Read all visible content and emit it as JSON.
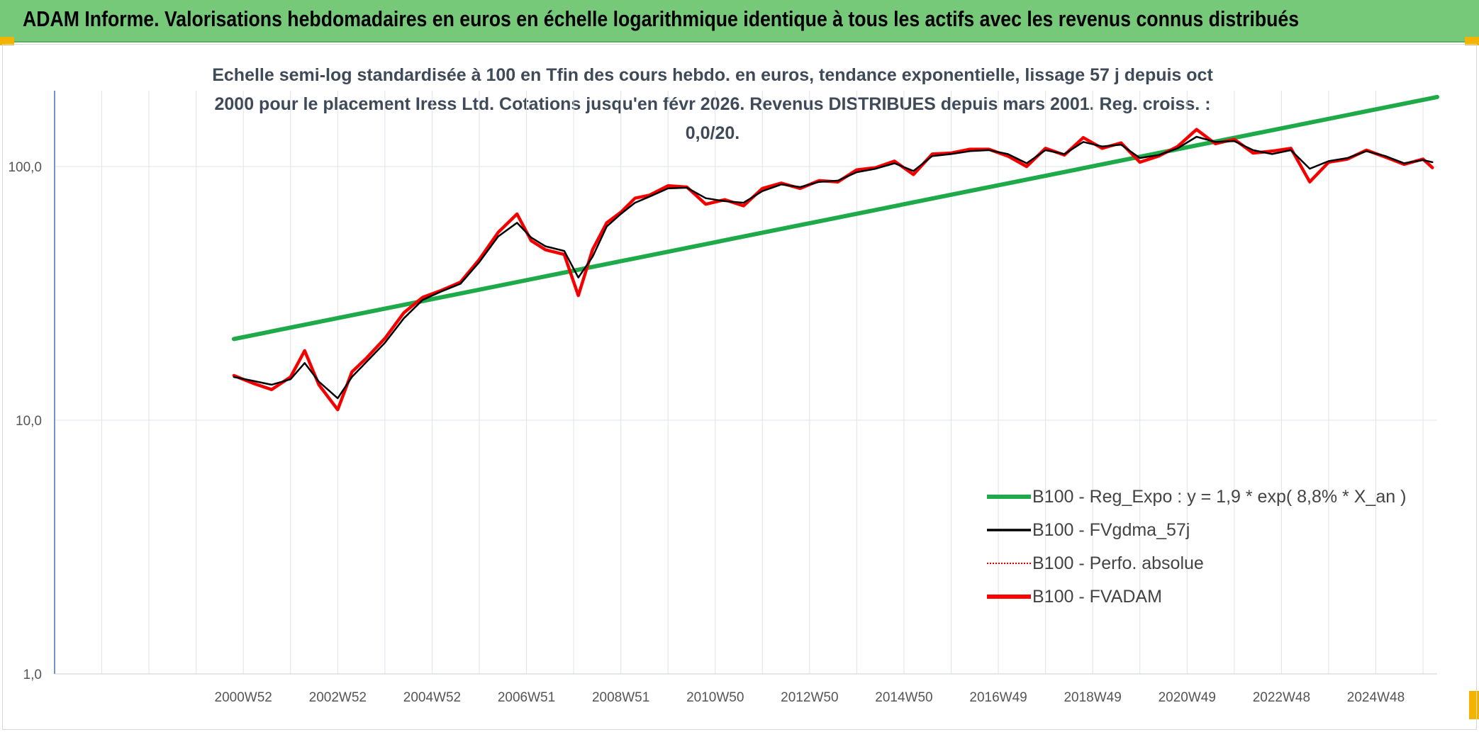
{
  "header": {
    "title": "ADAM Informe. Valorisations hebdomadaires en euros en échelle logarithmique identique à tous les actifs avec les revenus connus distribués"
  },
  "colors": {
    "header_bg": "#77c97a",
    "corner_accent": "#f2b400",
    "reg_line": "#1faa4a",
    "gdma_line": "#000000",
    "perfo_line": "#e00000",
    "fvadam_line": "#ff0000"
  },
  "chart_data": {
    "type": "line",
    "title": "Echelle semi-log standardisée à 100 en Tfin des cours hebdo. en euros, tendance exponentielle, lissage 57 j depuis oct 2000 pour le placement Iress Ltd. Cotations jusqu'en févr 2026. Revenus DISTRIBUES depuis mars 2001. Reg. croiss. : 0,0/20.",
    "y_scale": "log",
    "ylim": [
      1,
      200
    ],
    "xlim": [
      1997.0,
      2026.3
    ],
    "grid": true,
    "legend_position": "bottom-right",
    "x_ticks": [
      {
        "label": "2000W52",
        "x": 2001.0
      },
      {
        "label": "2002W52",
        "x": 2003.0
      },
      {
        "label": "2004W52",
        "x": 2005.0
      },
      {
        "label": "2006W51",
        "x": 2007.0
      },
      {
        "label": "2008W51",
        "x": 2009.0
      },
      {
        "label": "2010W50",
        "x": 2011.0
      },
      {
        "label": "2012W50",
        "x": 2013.0
      },
      {
        "label": "2014W50",
        "x": 2015.0
      },
      {
        "label": "2016W49",
        "x": 2017.0
      },
      {
        "label": "2018W49",
        "x": 2019.0
      },
      {
        "label": "2020W49",
        "x": 2021.0
      },
      {
        "label": "2022W48",
        "x": 2023.0
      },
      {
        "label": "2024W48",
        "x": 2025.0
      }
    ],
    "y_ticks": [
      {
        "label": "1,0",
        "value": 1
      },
      {
        "label": "10,0",
        "value": 10
      },
      {
        "label": "100,0",
        "value": 100
      }
    ],
    "series": [
      {
        "name": "B100 - Reg_Expo : y = 1,9 * exp( 8,8% *  X_an )",
        "style": "reg",
        "x": [
          2000.8,
          2026.3
        ],
        "y": [
          20.9,
          188
        ]
      },
      {
        "name": "B100 - FVgdma_57j",
        "style": "gdma",
        "x": [
          2000.8,
          2001.2,
          2001.6,
          2002.0,
          2002.3,
          2002.6,
          2003.0,
          2003.3,
          2003.6,
          2004.0,
          2004.4,
          2004.8,
          2005.2,
          2005.6,
          2006.0,
          2006.4,
          2006.8,
          2007.1,
          2007.4,
          2007.8,
          2008.1,
          2008.4,
          2008.7,
          2009.0,
          2009.3,
          2009.6,
          2010.0,
          2010.4,
          2010.8,
          2011.2,
          2011.6,
          2012.0,
          2012.4,
          2012.8,
          2013.2,
          2013.6,
          2014.0,
          2014.4,
          2014.8,
          2015.2,
          2015.6,
          2016.0,
          2016.4,
          2016.8,
          2017.2,
          2017.6,
          2018.0,
          2018.4,
          2018.8,
          2019.2,
          2019.6,
          2020.0,
          2020.4,
          2020.8,
          2021.2,
          2021.6,
          2022.0,
          2022.4,
          2022.8,
          2023.2,
          2023.6,
          2024.0,
          2024.4,
          2024.8,
          2025.2,
          2025.6,
          2026.0,
          2026.2
        ],
        "y": [
          14.8,
          14.3,
          13.8,
          14.5,
          16.8,
          14.2,
          12.2,
          14.8,
          16.9,
          20.2,
          25.2,
          29.8,
          32.2,
          34.5,
          42.0,
          53.0,
          60.0,
          52.5,
          48.5,
          46.5,
          36.5,
          44.0,
          58.0,
          65.0,
          72.0,
          76.0,
          82.0,
          82.5,
          75.0,
          73.0,
          72.0,
          80.0,
          85.0,
          83.0,
          87.0,
          88.0,
          95.0,
          98.0,
          103.0,
          96.0,
          110.0,
          112.0,
          115.0,
          116.0,
          112.0,
          103.0,
          116.0,
          112.0,
          125.0,
          120.0,
          122.0,
          108.0,
          111.0,
          118.0,
          131.0,
          125.0,
          126.0,
          116.0,
          112.0,
          116.0,
          98.0,
          105.0,
          108.0,
          115.0,
          110.0,
          103.0,
          106.0,
          104.0
        ]
      },
      {
        "name": "B100 - Perfo. absolue",
        "style": "perfo",
        "x": [
          2000.8,
          2001.2,
          2001.6,
          2002.0,
          2002.3,
          2002.6,
          2003.0,
          2003.3,
          2003.6,
          2004.0,
          2004.4,
          2004.8,
          2005.2,
          2005.6,
          2006.0,
          2006.4,
          2006.8,
          2007.1,
          2007.4,
          2007.8,
          2008.1,
          2008.4,
          2008.7,
          2009.0,
          2009.3,
          2009.6,
          2010.0,
          2010.4,
          2010.8,
          2011.2,
          2011.6,
          2012.0,
          2012.4,
          2012.8,
          2013.2,
          2013.6,
          2014.0,
          2014.4,
          2014.8,
          2015.2,
          2015.6,
          2016.0,
          2016.4,
          2016.8,
          2017.2,
          2017.6,
          2018.0,
          2018.4,
          2018.8,
          2019.2,
          2019.6,
          2020.0,
          2020.4,
          2020.8,
          2021.2,
          2021.6,
          2022.0,
          2022.4,
          2022.8,
          2023.2,
          2023.6,
          2024.0,
          2024.4,
          2024.8,
          2025.2,
          2025.6,
          2026.0,
          2026.2
        ],
        "y": [
          15.0,
          14.0,
          13.2,
          14.8,
          18.8,
          13.8,
          11.0,
          15.5,
          17.5,
          21.0,
          26.5,
          30.5,
          32.5,
          35.0,
          43.0,
          55.0,
          65.0,
          51.0,
          47.0,
          45.0,
          31.0,
          47.0,
          60.0,
          66.0,
          75.0,
          77.0,
          84.0,
          83.0,
          71.0,
          74.0,
          70.0,
          82.0,
          86.0,
          82.0,
          88.0,
          87.0,
          97.0,
          99.0,
          105.0,
          93.0,
          112.0,
          113.0,
          117.0,
          117.0,
          110.0,
          100.0,
          118.0,
          111.0,
          130.0,
          118.0,
          124.0,
          104.0,
          110.0,
          120.0,
          140.0,
          123.0,
          128.0,
          113.0,
          115.0,
          118.0,
          87.0,
          104.0,
          107.0,
          116.0,
          109.0,
          102.0,
          107.0,
          99.0
        ]
      },
      {
        "name": "B100 - FVADAM",
        "style": "fvadam",
        "x": [
          2000.8,
          2001.2,
          2001.6,
          2002.0,
          2002.3,
          2002.6,
          2003.0,
          2003.3,
          2003.6,
          2004.0,
          2004.4,
          2004.8,
          2005.2,
          2005.6,
          2006.0,
          2006.4,
          2006.8,
          2007.1,
          2007.4,
          2007.8,
          2008.1,
          2008.4,
          2008.7,
          2009.0,
          2009.3,
          2009.6,
          2010.0,
          2010.4,
          2010.8,
          2011.2,
          2011.6,
          2012.0,
          2012.4,
          2012.8,
          2013.2,
          2013.6,
          2014.0,
          2014.4,
          2014.8,
          2015.2,
          2015.6,
          2016.0,
          2016.4,
          2016.8,
          2017.2,
          2017.6,
          2018.0,
          2018.4,
          2018.8,
          2019.2,
          2019.6,
          2020.0,
          2020.4,
          2020.8,
          2021.2,
          2021.6,
          2022.0,
          2022.4,
          2022.8,
          2023.2,
          2023.6,
          2024.0,
          2024.4,
          2024.8,
          2025.2,
          2025.6,
          2026.0,
          2026.2
        ],
        "y": [
          15.0,
          14.0,
          13.2,
          14.8,
          18.8,
          13.8,
          11.0,
          15.5,
          17.5,
          21.0,
          26.5,
          30.5,
          32.5,
          35.0,
          43.0,
          55.0,
          65.0,
          51.0,
          47.0,
          45.0,
          31.0,
          47.0,
          60.0,
          66.0,
          75.0,
          77.0,
          84.0,
          83.0,
          71.0,
          74.0,
          70.0,
          82.0,
          86.0,
          82.0,
          88.0,
          87.0,
          97.0,
          99.0,
          105.0,
          93.0,
          112.0,
          113.0,
          117.0,
          117.0,
          110.0,
          100.0,
          118.0,
          111.0,
          130.0,
          118.0,
          124.0,
          104.0,
          110.0,
          120.0,
          140.0,
          123.0,
          128.0,
          113.0,
          115.0,
          118.0,
          87.0,
          104.0,
          107.0,
          116.0,
          109.0,
          102.0,
          107.0,
          99.0
        ]
      }
    ]
  }
}
